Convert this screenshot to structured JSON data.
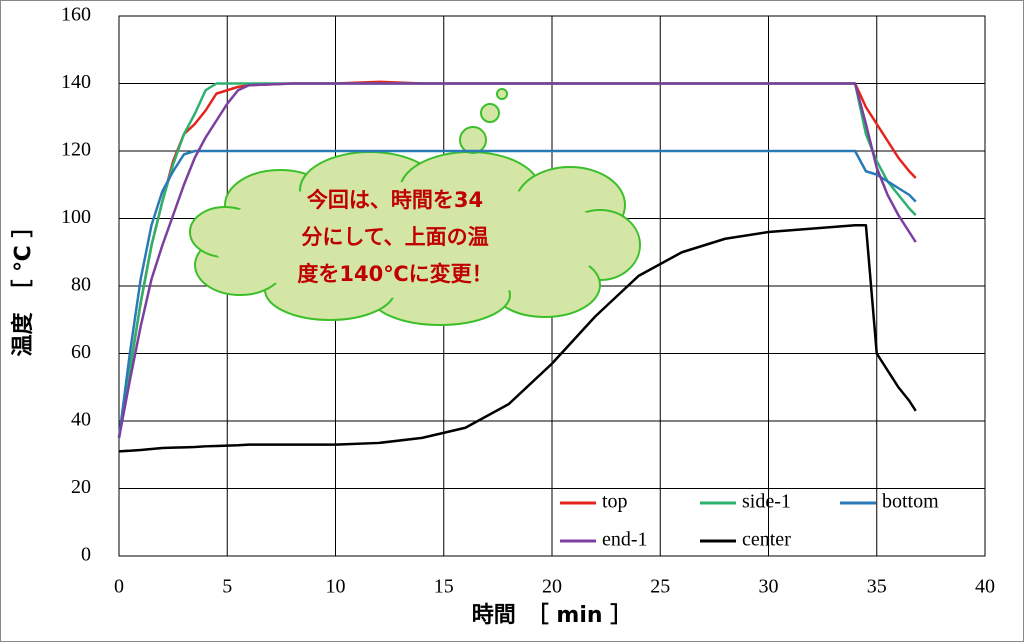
{
  "chart_data": {
    "type": "line",
    "xlabel": "時間　［ min ］",
    "ylabel": "温度　［ ℃ ］",
    "annotation": [
      "今回は、時間を34",
      "分にして、上面の温",
      "度を140℃に変更！"
    ],
    "x": [
      0,
      0.5,
      1,
      1.5,
      2,
      2.5,
      3,
      3.5,
      4,
      4.5,
      5,
      5.5,
      6,
      8,
      10,
      12,
      14,
      16,
      18,
      20,
      22,
      24,
      26,
      28,
      30,
      32,
      34,
      34.5,
      35,
      35.5,
      36,
      36.5,
      36.8
    ],
    "xlim": [
      0,
      40
    ],
    "xticks": [
      0,
      5,
      10,
      15,
      20,
      25,
      30,
      35,
      40
    ],
    "ylim": [
      0,
      160
    ],
    "yticks": [
      0,
      20,
      40,
      60,
      80,
      100,
      120,
      140,
      160
    ],
    "grid": true,
    "series": [
      {
        "name": "top",
        "color": "#e3231c",
        "values": [
          35,
          55,
          75,
          92,
          105,
          117,
          125,
          128,
          132,
          137,
          138,
          139,
          139.5,
          140,
          140,
          140.5,
          140,
          140,
          140,
          140,
          140,
          140,
          140,
          140,
          140,
          140,
          140,
          133,
          128,
          123,
          118,
          114,
          112
        ]
      },
      {
        "name": "side-1",
        "color": "#2cb26e",
        "values": [
          35,
          55,
          75,
          92,
          105,
          116,
          125,
          131,
          138,
          140,
          140,
          140,
          140,
          140,
          140,
          140,
          140,
          140,
          140,
          140,
          140,
          140,
          140,
          140,
          140,
          140,
          140,
          125,
          117,
          111,
          107,
          103,
          101
        ]
      },
      {
        "name": "bottom",
        "color": "#2a7ab8",
        "values": [
          35,
          60,
          82,
          98,
          108,
          114,
          119,
          120,
          120,
          120,
          120,
          120,
          120,
          120,
          120,
          120,
          120,
          120,
          120,
          120,
          120,
          120,
          120,
          120,
          120,
          120,
          120,
          114,
          113,
          111,
          109,
          107,
          105
        ]
      },
      {
        "name": "end-1",
        "color": "#7b3fa0",
        "values": [
          35,
          52,
          68,
          82,
          92,
          101,
          110,
          118,
          124,
          129,
          134,
          138,
          139.5,
          140,
          140,
          140,
          140,
          140,
          140,
          140,
          140,
          140,
          140,
          140,
          140,
          140,
          140,
          128,
          115,
          107,
          101,
          96,
          93
        ]
      },
      {
        "name": "center",
        "color": "#000000",
        "values": [
          31,
          31.2,
          31.4,
          31.7,
          32,
          32.1,
          32.2,
          32.3,
          32.5,
          32.6,
          32.7,
          32.8,
          33,
          33,
          33,
          33.5,
          35,
          38,
          45,
          57,
          71,
          83,
          90,
          94,
          96,
          97,
          98,
          98,
          60,
          55,
          50,
          46,
          43
        ]
      }
    ]
  }
}
